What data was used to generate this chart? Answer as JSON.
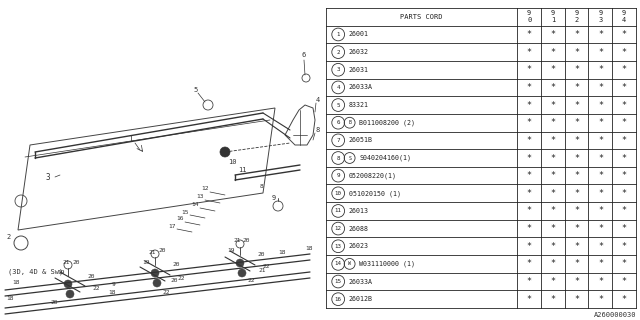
{
  "bg_color": "#ffffff",
  "header": [
    "PARTS CORD",
    "9\n0",
    "9\n1",
    "9\n2",
    "9\n3",
    "9\n4"
  ],
  "rows": [
    [
      "1  26001",
      "*",
      "*",
      "*",
      "*",
      "*"
    ],
    [
      "2  26032",
      "*",
      "*",
      "*",
      "*",
      "*"
    ],
    [
      "3  26031",
      "*",
      "*",
      "*",
      "*",
      "*"
    ],
    [
      "4  26033A",
      "*",
      "*",
      "*",
      "*",
      "*"
    ],
    [
      "5  83321",
      "*",
      "*",
      "*",
      "*",
      "*"
    ],
    [
      "6  B011008200 (2)",
      "*",
      "*",
      "*",
      "*",
      "*"
    ],
    [
      "7  26051B",
      "*",
      "*",
      "*",
      "*",
      "*"
    ],
    [
      "8  S040204160(1)",
      "*",
      "*",
      "*",
      "*",
      "*"
    ],
    [
      "9  052008220(1)",
      "*",
      "*",
      "*",
      "*",
      "*"
    ],
    [
      "10 051020150 (1)",
      "*",
      "*",
      "*",
      "*",
      "*"
    ],
    [
      "11 26013",
      "*",
      "*",
      "*",
      "*",
      "*"
    ],
    [
      "12 26088",
      "*",
      "*",
      "*",
      "*",
      "*"
    ],
    [
      "13 26023",
      "*",
      "*",
      "*",
      "*",
      "*"
    ],
    [
      "14 W031110000 (1)",
      "*",
      "*",
      "*",
      "*",
      "*"
    ],
    [
      "15 26033A",
      "*",
      "*",
      "*",
      "*",
      "*"
    ],
    [
      "16 26012B",
      "*",
      "*",
      "*",
      "*",
      "*"
    ]
  ],
  "row_circles": [
    true,
    true,
    true,
    true,
    true,
    true,
    true,
    true,
    true,
    true,
    true,
    true,
    true,
    true,
    true,
    true
  ],
  "row_circle_special": [
    null,
    null,
    null,
    null,
    null,
    "B",
    null,
    "S",
    null,
    null,
    null,
    null,
    null,
    "W",
    null,
    null
  ],
  "footer_text": "A260000030",
  "gray": "#444444",
  "line_color": "#333333"
}
